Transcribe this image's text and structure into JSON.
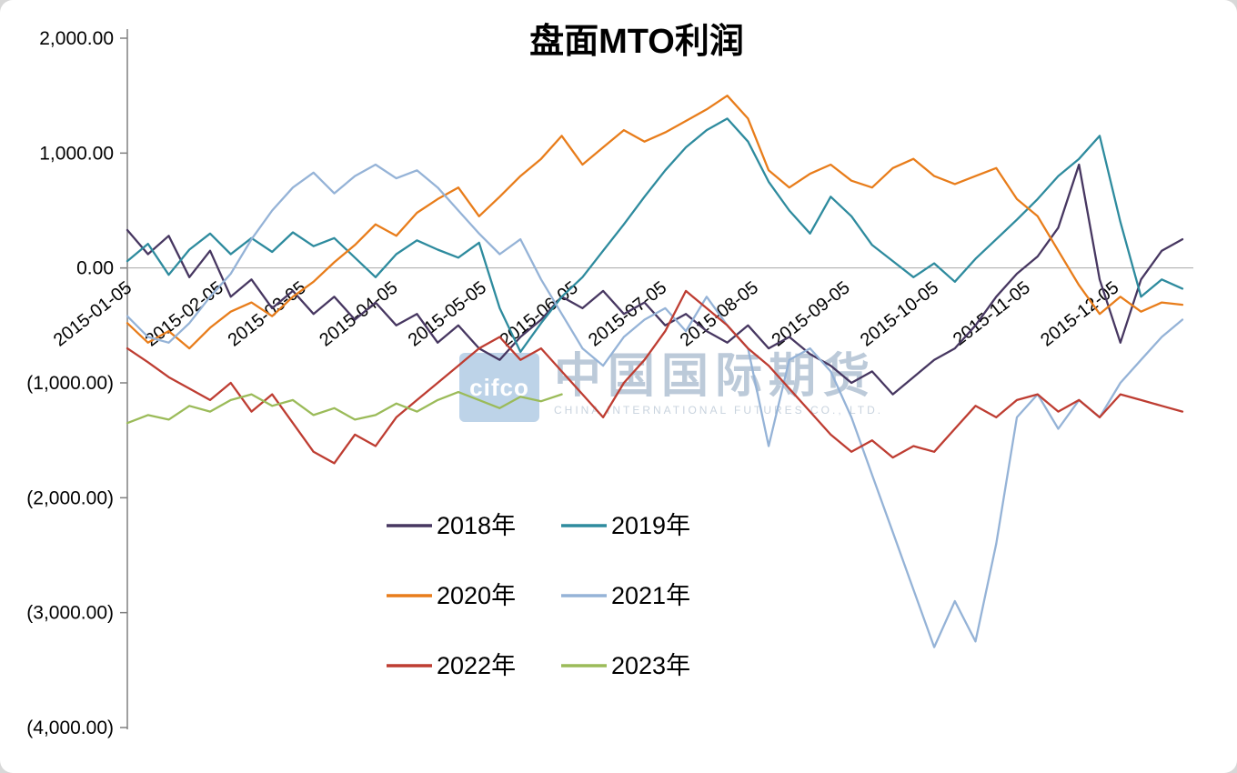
{
  "title": "盘面MTO利润",
  "watermark": {
    "logo_text": "cifco",
    "cn": "中国国际期货",
    "en": "CHINA INTERNATIONAL FUTURES CO., LTD."
  },
  "chart_data": {
    "type": "line",
    "title": "盘面MTO利润",
    "xlabel": "",
    "ylabel": "",
    "ylim": [
      -4000,
      2000
    ],
    "grid": false,
    "legend_position": "bottom-center",
    "y_ticks": [
      2000,
      1000,
      0,
      -1000,
      -2000,
      -3000,
      -4000
    ],
    "y_tick_labels": [
      "2,000.00",
      "1,000.00",
      "0.00",
      "(1,000.00)",
      "(2,000.00)",
      "(3,000.00)",
      "(4,000.00)"
    ],
    "x_tick_labels": [
      "2015-01-05",
      "2015-02-05",
      "2015-03-05",
      "2015-04-05",
      "2015-05-05",
      "2015-06-05",
      "2015-07-05",
      "2015-08-05",
      "2015-09-05",
      "2015-10-05",
      "2015-11-05",
      "2015-12-05"
    ],
    "x_tick_days": [
      0,
      31,
      59,
      90,
      120,
      151,
      181,
      212,
      243,
      273,
      304,
      334
    ],
    "span_days": 357,
    "series": [
      {
        "name": "2018年",
        "color": "#473761",
        "values": [
          330,
          120,
          280,
          -80,
          150,
          -250,
          -100,
          -350,
          -200,
          -400,
          -250,
          -450,
          -300,
          -500,
          -400,
          -650,
          -500,
          -700,
          -800,
          -600,
          -450,
          -250,
          -350,
          -200,
          -400,
          -300,
          -500,
          -400,
          -550,
          -650,
          -500,
          -700,
          -600,
          -750,
          -850,
          -1000,
          -900,
          -1100,
          -950,
          -800,
          -700,
          -500,
          -250,
          -50,
          100,
          350,
          900,
          -100,
          -650,
          -100,
          150,
          250
        ]
      },
      {
        "name": "2019年",
        "color": "#2E8B9E",
        "values": [
          60,
          210,
          -60,
          160,
          300,
          120,
          260,
          140,
          310,
          190,
          260,
          90,
          -80,
          120,
          240,
          160,
          90,
          220,
          -350,
          -730,
          -480,
          -250,
          -80,
          150,
          380,
          620,
          850,
          1050,
          1200,
          1300,
          1100,
          750,
          500,
          300,
          620,
          450,
          200,
          60,
          -80,
          40,
          -120,
          80,
          250,
          420,
          600,
          800,
          950,
          1150,
          400,
          -250,
          -100,
          -180
        ]
      },
      {
        "name": "2020年",
        "color": "#E87D1B",
        "values": [
          -480,
          -650,
          -550,
          -700,
          -520,
          -380,
          -300,
          -420,
          -250,
          -120,
          50,
          200,
          380,
          280,
          480,
          600,
          700,
          450,
          620,
          800,
          950,
          1150,
          900,
          1050,
          1200,
          1100,
          1180,
          1280,
          1380,
          1500,
          1300,
          850,
          700,
          820,
          900,
          760,
          700,
          870,
          950,
          800,
          730,
          800,
          870,
          600,
          450,
          150,
          -150,
          -400,
          -250,
          -380,
          -300,
          -320
        ]
      },
      {
        "name": "2021年",
        "color": "#95B3D7",
        "values": [
          -420,
          -600,
          -650,
          -480,
          -250,
          -50,
          250,
          500,
          700,
          830,
          650,
          800,
          900,
          780,
          850,
          700,
          500,
          300,
          120,
          250,
          -100,
          -400,
          -700,
          -850,
          -600,
          -450,
          -350,
          -550,
          -250,
          -500,
          -700,
          -1550,
          -800,
          -700,
          -900,
          -1300,
          -1800,
          -2300,
          -2800,
          -3300,
          -2900,
          -3250,
          -2400,
          -1300,
          -1100,
          -1400,
          -1150,
          -1300,
          -1000,
          -800,
          -600,
          -450
        ]
      },
      {
        "name": "2022年",
        "color": "#BE3D32",
        "values": [
          -700,
          -820,
          -950,
          -1050,
          -1150,
          -1000,
          -1250,
          -1100,
          -1350,
          -1600,
          -1700,
          -1450,
          -1550,
          -1300,
          -1150,
          -1000,
          -850,
          -700,
          -600,
          -800,
          -700,
          -900,
          -1100,
          -1300,
          -1000,
          -800,
          -550,
          -200,
          -350,
          -500,
          -700,
          -850,
          -1050,
          -1250,
          -1450,
          -1600,
          -1500,
          -1650,
          -1550,
          -1600,
          -1400,
          -1200,
          -1300,
          -1150,
          -1100,
          -1250,
          -1150,
          -1300,
          -1100,
          -1150,
          -1200,
          -1250
        ]
      },
      {
        "name": "2023年",
        "color": "#9BBB59",
        "values": [
          -1350,
          -1280,
          -1320,
          -1200,
          -1250,
          -1150,
          -1100,
          -1200,
          -1150,
          -1280,
          -1220,
          -1320,
          -1280,
          -1180,
          -1250,
          -1150,
          -1080,
          -1150,
          -1220,
          -1120,
          -1160,
          -1100,
          null,
          null,
          null,
          null,
          null,
          null,
          null,
          null,
          null,
          null,
          null,
          null,
          null,
          null,
          null,
          null,
          null,
          null,
          null,
          null,
          null,
          null,
          null,
          null,
          null,
          null,
          null,
          null,
          null,
          null
        ]
      }
    ]
  }
}
